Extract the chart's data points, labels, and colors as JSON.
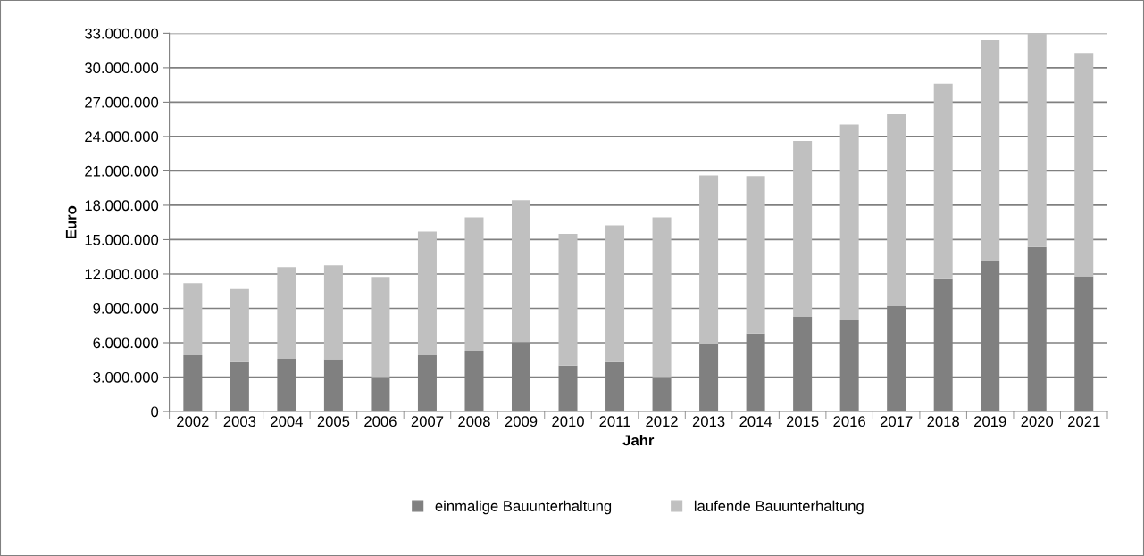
{
  "chart_data": {
    "type": "bar",
    "stacked": true,
    "xlabel": "Jahr",
    "ylabel": "Euro",
    "categories": [
      "2002",
      "2003",
      "2004",
      "2005",
      "2006",
      "2007",
      "2008",
      "2009",
      "2010",
      "2011",
      "2012",
      "2013",
      "2014",
      "2015",
      "2016",
      "2017",
      "2018",
      "2019",
      "2020",
      "2021"
    ],
    "series": [
      {
        "name": "einmalige Bauunterhaltung",
        "color": "#808080",
        "values": [
          4900000,
          4300000,
          4600000,
          4550000,
          3000000,
          4900000,
          5300000,
          6050000,
          4000000,
          4300000,
          3000000,
          5900000,
          6800000,
          8250000,
          7950000,
          9200000,
          11550000,
          13100000,
          14350000,
          11800000
        ]
      },
      {
        "name": "laufende Bauunterhaltung",
        "color": "#c0c0c0",
        "values": [
          6300000,
          6400000,
          8000000,
          8200000,
          8750000,
          10800000,
          11650000,
          12400000,
          11500000,
          11950000,
          13950000,
          14700000,
          13750000,
          15350000,
          17100000,
          16750000,
          17050000,
          19300000,
          18650000,
          19500000
        ]
      }
    ],
    "ylim": [
      0,
      33000000
    ],
    "yticks": [
      {
        "value": 0,
        "label": "0"
      },
      {
        "value": 3000000,
        "label": "3.000.000"
      },
      {
        "value": 6000000,
        "label": "6.000.000"
      },
      {
        "value": 9000000,
        "label": "9.000.000"
      },
      {
        "value": 12000000,
        "label": "12.000.000"
      },
      {
        "value": 15000000,
        "label": "15.000.000"
      },
      {
        "value": 18000000,
        "label": "18.000.000"
      },
      {
        "value": 21000000,
        "label": "21.000.000"
      },
      {
        "value": 24000000,
        "label": "24.000.000"
      },
      {
        "value": 27000000,
        "label": "27.000.000"
      },
      {
        "value": 30000000,
        "label": "30.000.000"
      },
      {
        "value": 33000000,
        "label": "33.000.000"
      }
    ],
    "grid": "y",
    "legend": "bottom"
  }
}
